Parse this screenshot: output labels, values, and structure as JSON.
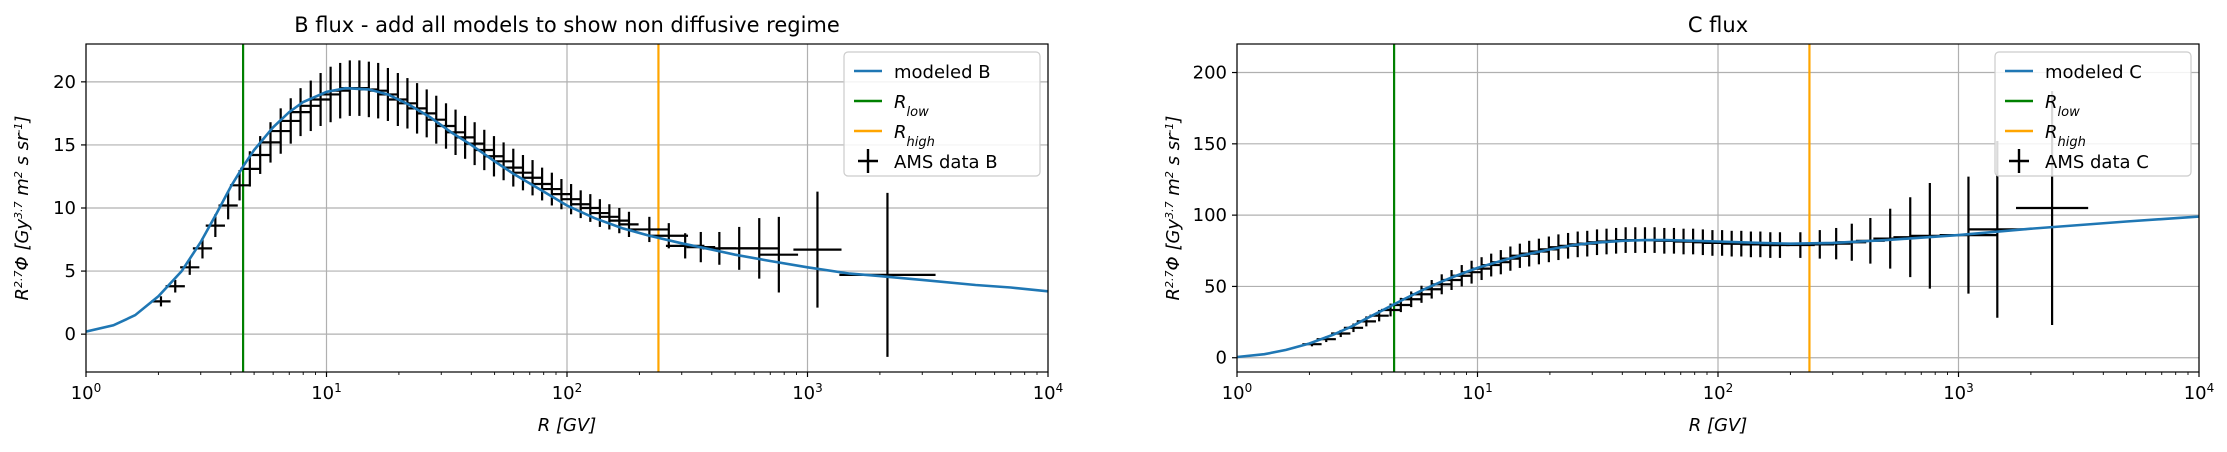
{
  "chart_data": [
    {
      "type": "line",
      "title": "B flux - add all models to show non diffusive regime",
      "xlabel": "R [GV]",
      "ylabel": "R^{2.7}Φ [Gy^{3.7} m^2 s sr^{-1}]",
      "xscale": "log",
      "xlim": [
        1,
        10000
      ],
      "ylim": [
        -3,
        23
      ],
      "xticks": [
        {
          "v": 1,
          "base": "10",
          "exp": "0"
        },
        {
          "v": 10,
          "base": "10",
          "exp": "1"
        },
        {
          "v": 100,
          "base": "10",
          "exp": "2"
        },
        {
          "v": 1000,
          "base": "10",
          "exp": "3"
        },
        {
          "v": 10000,
          "base": "10",
          "exp": "4"
        }
      ],
      "yticks": [
        0,
        5,
        10,
        15,
        20
      ],
      "grid": true,
      "legend_position": "top-right",
      "legend": [
        {
          "kind": "line",
          "color": "#1f77b4",
          "label": "modeled B"
        },
        {
          "kind": "line",
          "color": "#008000",
          "label": "R",
          "sub": "low"
        },
        {
          "kind": "line",
          "color": "#ffa500",
          "label": "R",
          "sub": "high"
        },
        {
          "kind": "errorbar",
          "color": "#000000",
          "label": "AMS data B"
        }
      ],
      "vlines": [
        {
          "x": 4.5,
          "color": "#008000"
        },
        {
          "x": 240,
          "color": "#ffa500"
        }
      ],
      "model": {
        "name": "modeled B",
        "color": "#1f77b4",
        "x": [
          1,
          1.3,
          1.6,
          2,
          2.5,
          3,
          3.5,
          4,
          4.5,
          5,
          6,
          7,
          8,
          10,
          12,
          15,
          18,
          22,
          27,
          33,
          40,
          50,
          60,
          80,
          100,
          130,
          170,
          220,
          300,
          400,
          500,
          700,
          1000,
          1500,
          2000,
          3000,
          5000,
          7000,
          10000
        ],
        "y": [
          0.2,
          0.7,
          1.5,
          3.0,
          5.0,
          7.3,
          9.6,
          11.7,
          13.3,
          14.6,
          16.4,
          17.6,
          18.4,
          19.2,
          19.5,
          19.4,
          19.0,
          18.2,
          17.2,
          16.0,
          15.0,
          13.7,
          12.7,
          11.3,
          10.2,
          9.2,
          8.4,
          7.8,
          7.2,
          6.7,
          6.3,
          5.8,
          5.3,
          4.8,
          4.6,
          4.3,
          3.9,
          3.7,
          3.4
        ]
      },
      "data": {
        "name": "AMS data B",
        "color": "#000000",
        "points": [
          [
            2.05,
            2.6,
            0.4,
            0.04
          ],
          [
            2.35,
            3.8,
            0.5,
            0.04
          ],
          [
            2.7,
            5.3,
            0.6,
            0.04
          ],
          [
            3.05,
            6.8,
            0.8,
            0.04
          ],
          [
            3.45,
            8.6,
            0.9,
            0.04
          ],
          [
            3.9,
            10.2,
            1.1,
            0.04
          ],
          [
            4.35,
            11.8,
            1.2,
            0.04
          ],
          [
            4.8,
            13.1,
            1.4,
            0.04
          ],
          [
            5.3,
            14.2,
            1.5,
            0.04
          ],
          [
            5.85,
            15.2,
            1.6,
            0.04
          ],
          [
            6.45,
            16.1,
            1.8,
            0.04
          ],
          [
            7.1,
            16.9,
            1.8,
            0.04
          ],
          [
            7.8,
            17.6,
            1.9,
            0.04
          ],
          [
            8.6,
            18.1,
            2.0,
            0.04
          ],
          [
            9.45,
            18.6,
            2.1,
            0.04
          ],
          [
            10.4,
            19.0,
            2.2,
            0.04
          ],
          [
            11.4,
            19.3,
            2.2,
            0.04
          ],
          [
            12.5,
            19.5,
            2.2,
            0.04
          ],
          [
            13.7,
            19.5,
            2.2,
            0.04
          ],
          [
            15.0,
            19.4,
            2.2,
            0.04
          ],
          [
            16.4,
            19.3,
            2.2,
            0.04
          ],
          [
            18.0,
            19.0,
            2.1,
            0.04
          ],
          [
            19.8,
            18.6,
            2.1,
            0.04
          ],
          [
            21.7,
            18.3,
            2.0,
            0.04
          ],
          [
            23.8,
            17.9,
            2.0,
            0.04
          ],
          [
            26.1,
            17.5,
            1.9,
            0.04
          ],
          [
            28.6,
            17.0,
            1.9,
            0.04
          ],
          [
            31.4,
            16.5,
            1.8,
            0.04
          ],
          [
            34.4,
            16.0,
            1.8,
            0.04
          ],
          [
            37.7,
            15.6,
            1.7,
            0.04
          ],
          [
            41.3,
            15.1,
            1.7,
            0.04
          ],
          [
            45.3,
            14.6,
            1.6,
            0.04
          ],
          [
            49.7,
            14.1,
            1.6,
            0.04
          ],
          [
            54.5,
            13.7,
            1.5,
            0.04
          ],
          [
            59.8,
            13.2,
            1.5,
            0.04
          ],
          [
            65.6,
            12.8,
            1.4,
            0.04
          ],
          [
            71.9,
            12.4,
            1.4,
            0.04
          ],
          [
            78.8,
            11.9,
            1.3,
            0.04
          ],
          [
            86.5,
            11.5,
            1.3,
            0.04
          ],
          [
            94.8,
            11.1,
            1.2,
            0.04
          ],
          [
            104,
            10.7,
            1.2,
            0.04
          ],
          [
            114,
            10.3,
            1.1,
            0.04
          ],
          [
            125,
            10.0,
            1.1,
            0.04
          ],
          [
            137,
            9.6,
            1.1,
            0.04
          ],
          [
            150,
            9.3,
            1.0,
            0.04
          ],
          [
            165,
            9.0,
            1.0,
            0.04
          ],
          [
            181,
            8.7,
            1.0,
            0.04
          ],
          [
            220,
            8.3,
            1.0,
            0.08
          ],
          [
            265,
            7.8,
            1.0,
            0.08
          ],
          [
            310,
            7.0,
            1.0,
            0.08
          ],
          [
            360,
            6.9,
            1.2,
            0.06
          ],
          [
            430,
            6.8,
            1.3,
            0.07
          ],
          [
            520,
            6.8,
            1.7,
            0.08
          ],
          [
            630,
            6.8,
            2.4,
            0.08
          ],
          [
            760,
            6.3,
            3.0,
            0.08
          ],
          [
            1100,
            6.7,
            4.6,
            0.1
          ],
          [
            2150,
            4.7,
            6.5,
            0.2
          ]
        ]
      }
    },
    {
      "type": "line",
      "title": "C flux",
      "xlabel": "R [GV]",
      "ylabel": "R^{2.7}Φ [Gy^{3.7} m^2 s sr^{-1}]",
      "xscale": "log",
      "xlim": [
        1,
        10000
      ],
      "ylim": [
        -10,
        220
      ],
      "xticks": [
        {
          "v": 1,
          "base": "10",
          "exp": "0"
        },
        {
          "v": 10,
          "base": "10",
          "exp": "1"
        },
        {
          "v": 100,
          "base": "10",
          "exp": "2"
        },
        {
          "v": 1000,
          "base": "10",
          "exp": "3"
        },
        {
          "v": 10000,
          "base": "10",
          "exp": "4"
        }
      ],
      "yticks": [
        0,
        50,
        100,
        150,
        200
      ],
      "grid": true,
      "legend_position": "top-right",
      "legend": [
        {
          "kind": "line",
          "color": "#1f77b4",
          "label": "modeled C"
        },
        {
          "kind": "line",
          "color": "#008000",
          "label": "R",
          "sub": "low"
        },
        {
          "kind": "line",
          "color": "#ffa500",
          "label": "R",
          "sub": "high"
        },
        {
          "kind": "errorbar",
          "color": "#000000",
          "label": "AMS data C"
        }
      ],
      "vlines": [
        {
          "x": 4.5,
          "color": "#008000"
        },
        {
          "x": 240,
          "color": "#ffa500"
        }
      ],
      "model": {
        "name": "modeled C",
        "color": "#1f77b4",
        "x": [
          1,
          1.3,
          1.6,
          2,
          2.5,
          3,
          3.5,
          4,
          4.5,
          5,
          6,
          7,
          8,
          10,
          12,
          15,
          20,
          25,
          30,
          40,
          50,
          60,
          80,
          100,
          150,
          200,
          300,
          500,
          1000,
          2000,
          5000,
          10000
        ],
        "y": [
          0.5,
          2.5,
          5.5,
          10,
          16,
          22,
          28,
          33,
          37.5,
          41.5,
          48,
          53,
          57,
          63,
          67,
          71.5,
          76,
          79,
          80.5,
          82,
          82.5,
          82.5,
          82,
          81.5,
          80.5,
          80,
          80.5,
          82.5,
          86,
          90.5,
          95.5,
          99
        ]
      },
      "data": {
        "name": "AMS data C",
        "color": "#000000",
        "points": [
          [
            2.05,
            9.5,
            1.5,
            0.04
          ],
          [
            2.35,
            13,
            2,
            0.04
          ],
          [
            2.7,
            17,
            2.5,
            0.04
          ],
          [
            3.05,
            21,
            3,
            0.04
          ],
          [
            3.45,
            25.5,
            3.5,
            0.04
          ],
          [
            3.9,
            29.5,
            4,
            0.04
          ],
          [
            4.35,
            33.5,
            4.5,
            0.04
          ],
          [
            4.8,
            37,
            5,
            0.04
          ],
          [
            5.3,
            41,
            5.5,
            0.04
          ],
          [
            5.85,
            44.5,
            6,
            0.04
          ],
          [
            6.45,
            48,
            6.5,
            0.04
          ],
          [
            7.1,
            51.5,
            7,
            0.04
          ],
          [
            7.8,
            54.5,
            7,
            0.04
          ],
          [
            8.6,
            57.5,
            7.5,
            0.04
          ],
          [
            9.45,
            60,
            8,
            0.04
          ],
          [
            10.4,
            62.5,
            8,
            0.04
          ],
          [
            11.4,
            65,
            8,
            0.04
          ],
          [
            12.5,
            67,
            8.5,
            0.04
          ],
          [
            13.7,
            69.5,
            8.5,
            0.04
          ],
          [
            15.0,
            71.5,
            8.5,
            0.04
          ],
          [
            16.4,
            73,
            9,
            0.04
          ],
          [
            18.0,
            74.5,
            9,
            0.04
          ],
          [
            19.8,
            76,
            9,
            0.04
          ],
          [
            21.7,
            77.5,
            9,
            0.04
          ],
          [
            23.8,
            78.5,
            9,
            0.04
          ],
          [
            26.1,
            79.5,
            9,
            0.04
          ],
          [
            28.6,
            80,
            9,
            0.04
          ],
          [
            31.4,
            81,
            9,
            0.04
          ],
          [
            34.4,
            81.5,
            9,
            0.04
          ],
          [
            37.7,
            82,
            9,
            0.04
          ],
          [
            41.3,
            82.5,
            9,
            0.04
          ],
          [
            45.3,
            82.5,
            9,
            0.04
          ],
          [
            49.7,
            82.5,
            9,
            0.04
          ],
          [
            54.5,
            82.5,
            9,
            0.04
          ],
          [
            59.8,
            82,
            9,
            0.04
          ],
          [
            65.6,
            82,
            9,
            0.04
          ],
          [
            71.9,
            81.5,
            9,
            0.04
          ],
          [
            78.8,
            81.5,
            9,
            0.04
          ],
          [
            86.5,
            81,
            9,
            0.04
          ],
          [
            94.8,
            80.5,
            9,
            0.04
          ],
          [
            104,
            80.5,
            9,
            0.04
          ],
          [
            114,
            80,
            9,
            0.04
          ],
          [
            125,
            80,
            9,
            0.04
          ],
          [
            137,
            79.5,
            9,
            0.04
          ],
          [
            150,
            79.5,
            9,
            0.04
          ],
          [
            165,
            79,
            9,
            0.04
          ],
          [
            181,
            79,
            9,
            0.04
          ],
          [
            220,
            79,
            9,
            0.06
          ],
          [
            265,
            79.5,
            10,
            0.06
          ],
          [
            310,
            80,
            11,
            0.06
          ],
          [
            360,
            81,
            13,
            0.06
          ],
          [
            430,
            82,
            16,
            0.06
          ],
          [
            520,
            83.5,
            21,
            0.07
          ],
          [
            630,
            84.5,
            28,
            0.07
          ],
          [
            760,
            85.5,
            37,
            0.08
          ],
          [
            1100,
            86,
            41,
            0.12
          ],
          [
            1450,
            90,
            62,
            0.12
          ],
          [
            2450,
            105,
            82,
            0.15
          ]
        ]
      }
    }
  ]
}
